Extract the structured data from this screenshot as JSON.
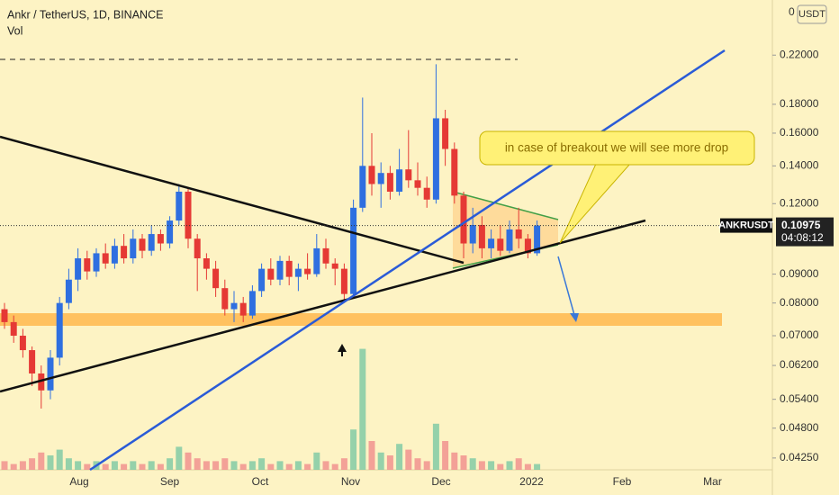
{
  "header": {
    "symbol": "Ankr / TetherUS, 1D, BINANCE",
    "indicator": "Vol"
  },
  "chart_data": {
    "type": "candlestick",
    "log_scale": true,
    "currency": "USDT",
    "top_label": "0",
    "up_color": "#2f6fe0",
    "down_color": "#e53935",
    "ylim": [
      0.0405,
      0.2755
    ],
    "yticks": [
      {
        "value": 0.22,
        "label": "0.22000"
      },
      {
        "value": 0.18,
        "label": "0.18000"
      },
      {
        "value": 0.16,
        "label": "0.16000"
      },
      {
        "value": 0.14,
        "label": "0.14000"
      },
      {
        "value": 0.12,
        "label": "0.12000"
      },
      {
        "value": 0.09,
        "label": "0.09000"
      },
      {
        "value": 0.08,
        "label": "0.08000"
      },
      {
        "value": 0.07,
        "label": "0.07000"
      },
      {
        "value": 0.062,
        "label": "0.06200"
      },
      {
        "value": 0.054,
        "label": "0.05400"
      },
      {
        "value": 0.048,
        "label": "0.04800"
      },
      {
        "value": 0.0425,
        "label": "0.04250"
      }
    ],
    "x_labels": [
      "Aug",
      "Sep",
      "Oct",
      "Nov",
      "Dec",
      "2022",
      "Feb",
      "Mar"
    ],
    "ohlc": [
      [
        0.078,
        0.08,
        0.072,
        0.074
      ],
      [
        0.074,
        0.076,
        0.068,
        0.07
      ],
      [
        0.07,
        0.072,
        0.064,
        0.066
      ],
      [
        0.066,
        0.067,
        0.057,
        0.06
      ],
      [
        0.06,
        0.062,
        0.052,
        0.056
      ],
      [
        0.056,
        0.066,
        0.054,
        0.064
      ],
      [
        0.064,
        0.082,
        0.062,
        0.08
      ],
      [
        0.08,
        0.092,
        0.078,
        0.088
      ],
      [
        0.088,
        0.1,
        0.084,
        0.096
      ],
      [
        0.096,
        0.099,
        0.088,
        0.091
      ],
      [
        0.091,
        0.1,
        0.089,
        0.098
      ],
      [
        0.098,
        0.102,
        0.092,
        0.094
      ],
      [
        0.094,
        0.104,
        0.092,
        0.101
      ],
      [
        0.101,
        0.106,
        0.094,
        0.096
      ],
      [
        0.096,
        0.108,
        0.094,
        0.104
      ],
      [
        0.104,
        0.106,
        0.096,
        0.099
      ],
      [
        0.099,
        0.11,
        0.097,
        0.106
      ],
      [
        0.106,
        0.108,
        0.099,
        0.102
      ],
      [
        0.102,
        0.114,
        0.1,
        0.112
      ],
      [
        0.112,
        0.13,
        0.11,
        0.126
      ],
      [
        0.126,
        0.128,
        0.1,
        0.104
      ],
      [
        0.104,
        0.106,
        0.084,
        0.096
      ],
      [
        0.096,
        0.098,
        0.088,
        0.092
      ],
      [
        0.092,
        0.095,
        0.082,
        0.085
      ],
      [
        0.085,
        0.088,
        0.076,
        0.078
      ],
      [
        0.078,
        0.084,
        0.074,
        0.08
      ],
      [
        0.08,
        0.082,
        0.074,
        0.076
      ],
      [
        0.076,
        0.086,
        0.075,
        0.084
      ],
      [
        0.084,
        0.094,
        0.082,
        0.092
      ],
      [
        0.092,
        0.096,
        0.086,
        0.088
      ],
      [
        0.088,
        0.097,
        0.086,
        0.095
      ],
      [
        0.095,
        0.097,
        0.086,
        0.089
      ],
      [
        0.089,
        0.094,
        0.084,
        0.092
      ],
      [
        0.092,
        0.098,
        0.088,
        0.09
      ],
      [
        0.09,
        0.106,
        0.089,
        0.1
      ],
      [
        0.1,
        0.104,
        0.092,
        0.094
      ],
      [
        0.094,
        0.096,
        0.086,
        0.092
      ],
      [
        0.092,
        0.094,
        0.08,
        0.083
      ],
      [
        0.083,
        0.122,
        0.082,
        0.118
      ],
      [
        0.118,
        0.185,
        0.116,
        0.14
      ],
      [
        0.14,
        0.16,
        0.124,
        0.13
      ],
      [
        0.13,
        0.142,
        0.118,
        0.136
      ],
      [
        0.136,
        0.14,
        0.122,
        0.126
      ],
      [
        0.126,
        0.15,
        0.124,
        0.138
      ],
      [
        0.138,
        0.162,
        0.128,
        0.132
      ],
      [
        0.132,
        0.142,
        0.124,
        0.128
      ],
      [
        0.128,
        0.134,
        0.118,
        0.122
      ],
      [
        0.122,
        0.212,
        0.12,
        0.17
      ],
      [
        0.17,
        0.176,
        0.14,
        0.15
      ],
      [
        0.15,
        0.154,
        0.12,
        0.124
      ],
      [
        0.124,
        0.126,
        0.096,
        0.102
      ],
      [
        0.102,
        0.118,
        0.098,
        0.11
      ],
      [
        0.11,
        0.114,
        0.096,
        0.1
      ],
      [
        0.1,
        0.108,
        0.096,
        0.104
      ],
      [
        0.104,
        0.11,
        0.097,
        0.099
      ],
      [
        0.099,
        0.112,
        0.098,
        0.108
      ],
      [
        0.108,
        0.118,
        0.1,
        0.104
      ],
      [
        0.104,
        0.106,
        0.096,
        0.098
      ],
      [
        0.098,
        0.112,
        0.097,
        0.10975
      ]
    ],
    "volume": [
      3,
      2,
      3,
      4,
      6,
      5,
      7,
      4,
      3,
      2,
      3,
      2,
      3,
      2,
      3,
      2,
      3,
      2,
      4,
      8,
      6,
      4,
      3,
      3,
      4,
      3,
      2,
      3,
      4,
      2,
      3,
      2,
      3,
      2,
      6,
      3,
      2,
      4,
      14,
      42,
      10,
      6,
      5,
      9,
      7,
      4,
      3,
      16,
      10,
      6,
      5,
      4,
      3,
      3,
      2,
      3,
      4,
      2,
      2
    ],
    "last_price": {
      "symbol": "ANKRUSDT",
      "value": 0.10975,
      "countdown": "04:08:12"
    },
    "annotation": "in case of breakout we will see more drop"
  }
}
